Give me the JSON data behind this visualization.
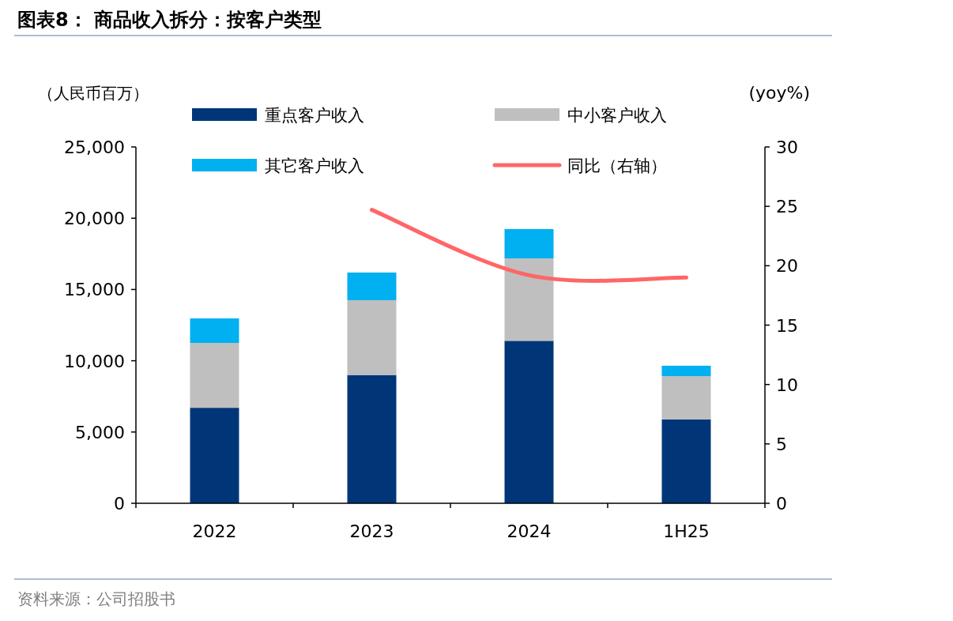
{
  "chart_data": {
    "type": "bar",
    "title": "图表8： 商品收入拆分：按客户类型",
    "ylabel": "（人民币百万）",
    "y2label": "(yoy%)",
    "categories": [
      "2022",
      "2023",
      "2024",
      "1H25"
    ],
    "stacked": true,
    "series": [
      {
        "name": "重点客户收入",
        "color": "#003678",
        "values": [
          6700,
          9000,
          11400,
          5880
        ]
      },
      {
        "name": "中小客户收入",
        "color": "#bfbfbf",
        "values": [
          4550,
          5250,
          5780,
          3040
        ]
      },
      {
        "name": "其它客户收入",
        "color": "#00b0f0",
        "values": [
          1720,
          1940,
          2060,
          730
        ]
      },
      {
        "name": "同比（右轴）",
        "color": "#ff6666",
        "type": "line",
        "axis": "y2",
        "values": [
          null,
          24.7,
          19.2,
          19.0
        ]
      }
    ],
    "ylim": [
      0,
      25000
    ],
    "yticks": [
      0,
      {
        "value": 5000,
        "label": "5,000"
      },
      {
        "value": 10000,
        "label": "10,000"
      },
      {
        "value": 15000,
        "label": "15,000"
      },
      {
        "value": 20000,
        "label": "20,000"
      },
      {
        "value": 25000,
        "label": "25,000"
      }
    ],
    "y2lim": [
      0,
      30
    ],
    "y2ticks": [
      0,
      5,
      10,
      15,
      20,
      25,
      30
    ],
    "legend": "top",
    "grid": false,
    "annotations": [
      "资料来源：公司招股书"
    ]
  }
}
